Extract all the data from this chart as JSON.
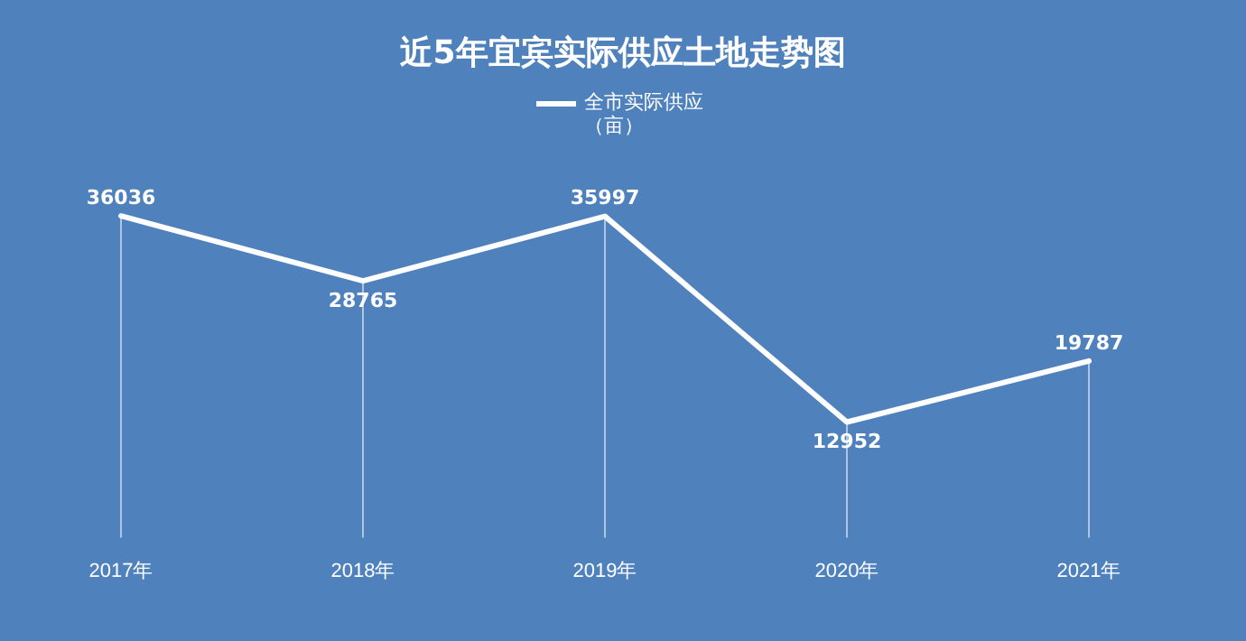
{
  "chart_data": {
    "type": "line",
    "title": "近5年宜宾实际供应土地走势图",
    "categories": [
      "2017年",
      "2018年",
      "2019年",
      "2020年",
      "2021年"
    ],
    "series": [
      {
        "name": "全市实际供应（亩）",
        "color": "#ffffff",
        "values": [
          36036,
          28765,
          35997,
          12952,
          19787
        ]
      }
    ],
    "tick_labels": "x",
    "data_labels": true,
    "legend": "top",
    "grid": "x",
    "marker": "none",
    "line_style": "solid"
  }
}
